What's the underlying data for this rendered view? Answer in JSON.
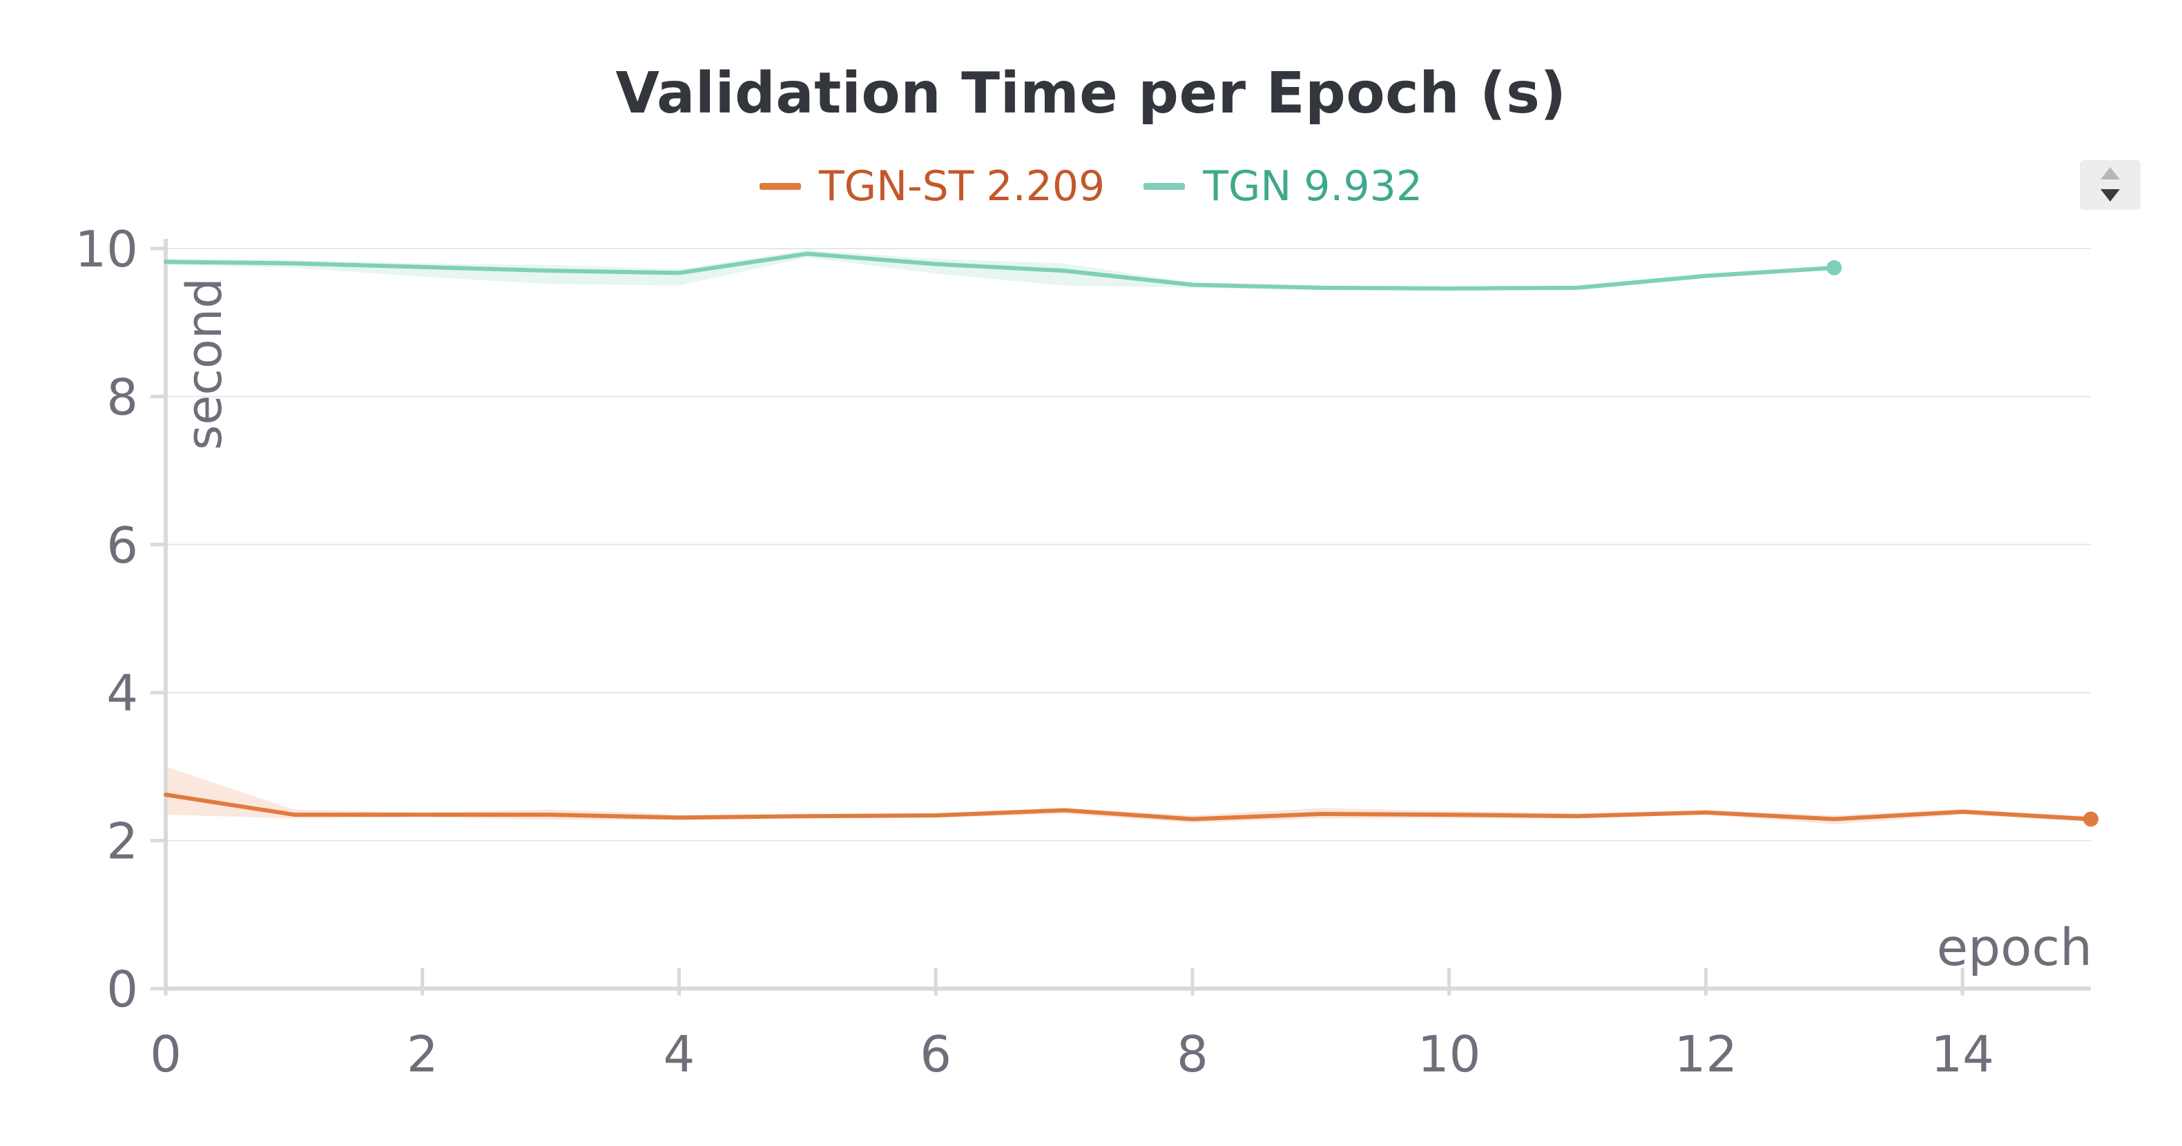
{
  "chart_data": {
    "type": "line",
    "title": "Validation Time per Epoch (s)",
    "xlabel": "epoch",
    "ylabel": "second",
    "xlim": [
      0,
      15
    ],
    "ylim": [
      0,
      10
    ],
    "xticks": [
      "0",
      "2",
      "4",
      "6",
      "8",
      "10",
      "12",
      "14"
    ],
    "yticks": [
      "0",
      "2",
      "4",
      "6",
      "8",
      "10"
    ],
    "grid": true,
    "legend_position": "top-center",
    "series": [
      {
        "name": "TGN-ST",
        "legend_value": "2.209",
        "color": "#e07b3f",
        "legend_text_color": "#c4582a",
        "band_color": "#fbe3d6",
        "x": [
          0,
          1,
          2,
          3,
          4,
          5,
          6,
          7,
          8,
          9,
          10,
          11,
          12,
          13,
          14,
          15
        ],
        "y": [
          2.62,
          2.35,
          2.35,
          2.35,
          2.31,
          2.33,
          2.34,
          2.41,
          2.29,
          2.36,
          2.35,
          2.33,
          2.38,
          2.29,
          2.39,
          2.29
        ],
        "band_upper": [
          3.0,
          2.42,
          2.38,
          2.42,
          2.35,
          2.36,
          2.37,
          2.44,
          2.34,
          2.44,
          2.4,
          2.37,
          2.41,
          2.34,
          2.42,
          2.33
        ],
        "band_lower": [
          2.35,
          2.3,
          2.32,
          2.28,
          2.28,
          2.3,
          2.31,
          2.36,
          2.24,
          2.3,
          2.3,
          2.3,
          2.35,
          2.22,
          2.35,
          2.25
        ]
      },
      {
        "name": "TGN",
        "legend_value": "9.932",
        "color": "#7fcfba",
        "legend_text_color": "#3fa98d",
        "band_color": "#e3f5ef",
        "x": [
          0,
          1,
          2,
          3,
          4,
          5,
          6,
          7,
          8,
          9,
          10,
          11,
          12,
          13
        ],
        "y": [
          9.82,
          9.8,
          9.75,
          9.7,
          9.67,
          9.93,
          9.79,
          9.7,
          9.51,
          9.47,
          9.46,
          9.47,
          9.63,
          9.74
        ],
        "band_upper": [
          9.86,
          9.84,
          9.8,
          9.78,
          9.72,
          9.98,
          9.86,
          9.8,
          9.54,
          9.5,
          9.49,
          9.5,
          9.66,
          9.77
        ],
        "band_lower": [
          9.78,
          9.74,
          9.62,
          9.52,
          9.5,
          9.88,
          9.66,
          9.5,
          9.47,
          9.44,
          9.43,
          9.44,
          9.6,
          9.71
        ]
      }
    ]
  },
  "colors": {
    "axis": "#dadada",
    "grid": "#e6e6e6",
    "tick_text": "#6f6f7b",
    "title": "#33373d"
  },
  "icons": {
    "sort_control": "sort-up-down-icon"
  }
}
